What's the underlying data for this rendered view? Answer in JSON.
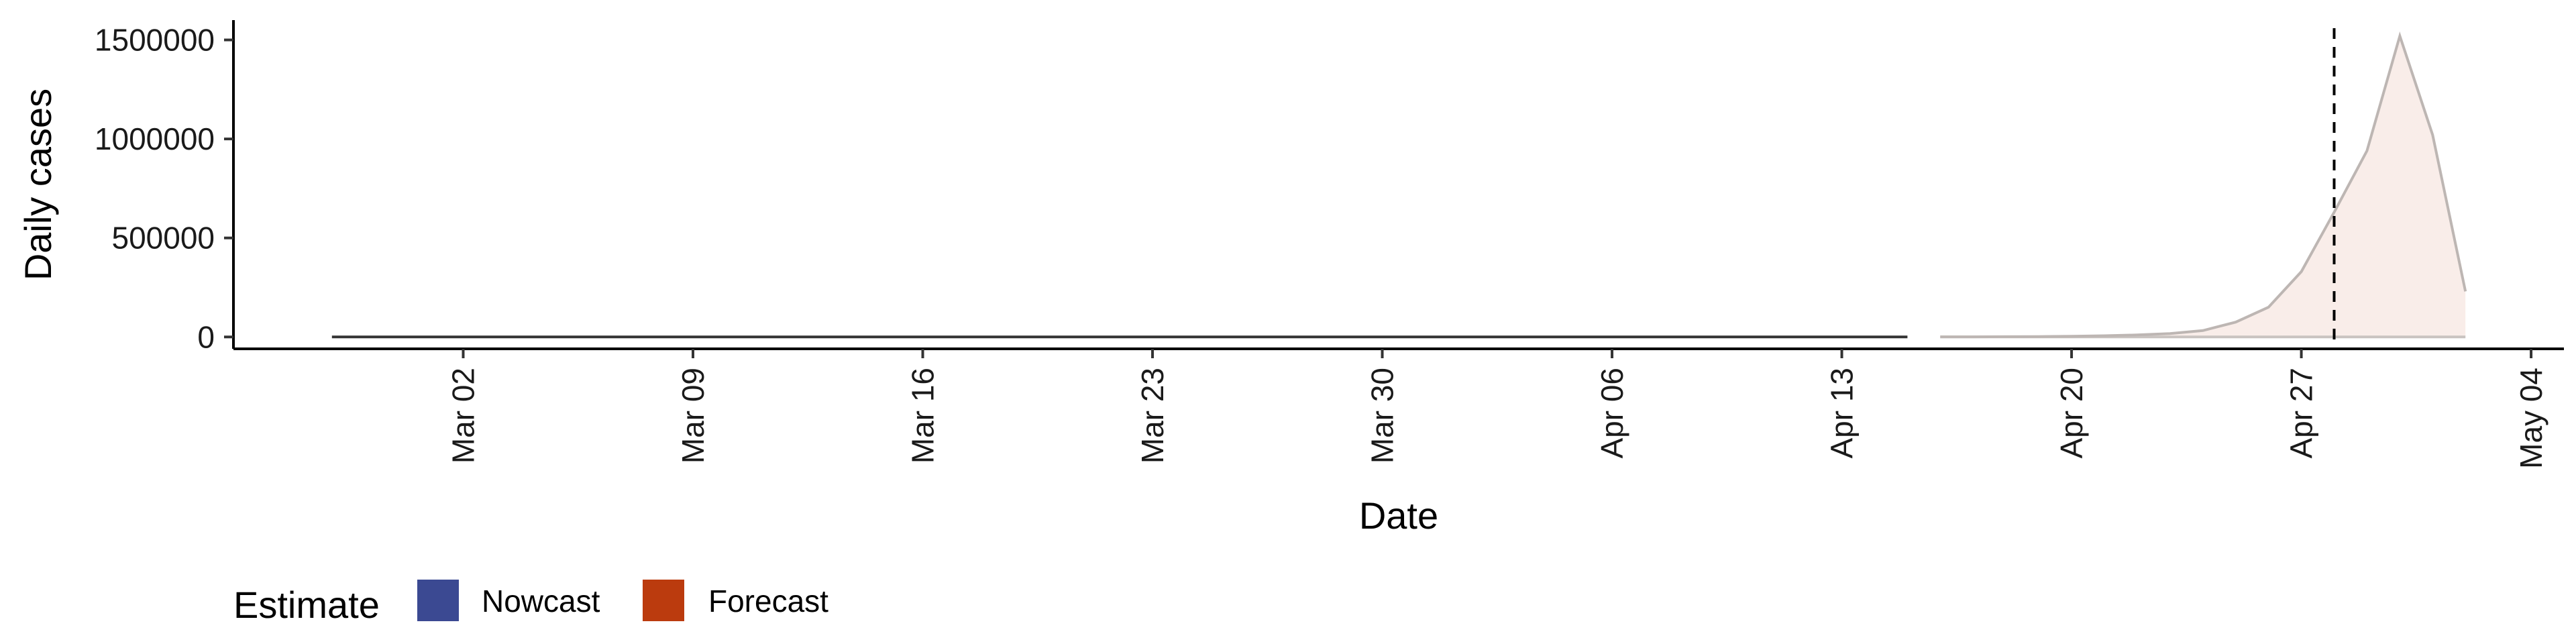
{
  "chart_data": {
    "type": "area",
    "xlabel": "Date",
    "ylabel": "Daily cases",
    "xlim": [
      "2020-02-24",
      "2020-05-05"
    ],
    "ylim": [
      -60000,
      1600000
    ],
    "x_ticks": [
      "2020-03-02",
      "2020-03-09",
      "2020-03-16",
      "2020-03-23",
      "2020-03-30",
      "2020-04-06",
      "2020-04-13",
      "2020-04-20",
      "2020-04-27",
      "2020-05-04"
    ],
    "x_tick_labels": [
      "Mar 02",
      "Mar 09",
      "Mar 16",
      "Mar 23",
      "Mar 30",
      "Apr 06",
      "Apr 13",
      "Apr 20",
      "Apr 27",
      "May 04"
    ],
    "y_ticks": [
      0,
      500000,
      1000000,
      1500000
    ],
    "y_tick_labels": [
      "0",
      "500000",
      "1000000",
      "1500000"
    ],
    "grid": false,
    "vline": {
      "x": "2020-04-28",
      "style": "dashed"
    },
    "series": [
      {
        "color": "#3B4992",
        "x": [
          "2020-02-27",
          "2020-02-28",
          "2020-02-29",
          "2020-03-01",
          "2020-03-02",
          "2020-03-03",
          "2020-03-04",
          "2020-03-05",
          "2020-03-06",
          "2020-03-07",
          "2020-03-08",
          "2020-03-09",
          "2020-03-10",
          "2020-03-11",
          "2020-03-12",
          "2020-03-13",
          "2020-03-14",
          "2020-03-15",
          "2020-03-16",
          "2020-03-17",
          "2020-03-18",
          "2020-03-19",
          "2020-03-20",
          "2020-03-21",
          "2020-03-22",
          "2020-03-23",
          "2020-03-24",
          "2020-03-25",
          "2020-03-26",
          "2020-03-27",
          "2020-03-28",
          "2020-03-29",
          "2020-03-30",
          "2020-03-31",
          "2020-04-01",
          "2020-04-02",
          "2020-04-03",
          "2020-04-04",
          "2020-04-05",
          "2020-04-06",
          "2020-04-07",
          "2020-04-08",
          "2020-04-09",
          "2020-04-10",
          "2020-04-11",
          "2020-04-12",
          "2020-04-13",
          "2020-04-14",
          "2020-04-15"
        ],
        "values": [
          0,
          0,
          0,
          0,
          0,
          0,
          0,
          0,
          0,
          0,
          0,
          0,
          0,
          0,
          0,
          0,
          0,
          0,
          0,
          0,
          0,
          0,
          0,
          0,
          0,
          0,
          0,
          0,
          0,
          0,
          0,
          0,
          0,
          0,
          0,
          0,
          0,
          0,
          0,
          0,
          0,
          0,
          0,
          0,
          0,
          0,
          0,
          0,
          0
        ]
      },
      {
        "color": "#BB3B0E",
        "x": [
          "2020-04-16",
          "2020-04-17",
          "2020-04-18",
          "2020-04-19",
          "2020-04-20",
          "2020-04-21",
          "2020-04-22",
          "2020-04-23",
          "2020-04-24",
          "2020-04-25",
          "2020-04-26",
          "2020-04-27",
          "2020-04-28",
          "2020-04-29",
          "2020-04-30",
          "2020-05-01",
          "2020-05-02"
        ],
        "values": [
          500,
          800,
          1200,
          2000,
          3500,
          6000,
          10000,
          17000,
          32000,
          75000,
          150000,
          330000,
          630000,
          940000,
          1520000,
          1020000,
          230000
        ],
        "lower": [
          0,
          0,
          0,
          0,
          0,
          0,
          0,
          0,
          0,
          0,
          0,
          0,
          0,
          0,
          0,
          0,
          0
        ]
      }
    ],
    "legend": {
      "title": "Estimate",
      "position": "bottom-left",
      "entries": [
        {
          "label": "Nowcast",
          "color": "#3B4992"
        },
        {
          "label": "Forecast",
          "color": "#BB3B0E"
        }
      ]
    }
  }
}
